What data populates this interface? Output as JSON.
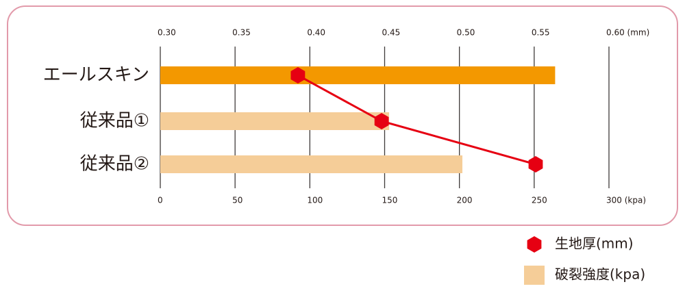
{
  "chart_data": {
    "type": "bar",
    "categories": [
      "エールスキン",
      "従来品①",
      "従来品②"
    ],
    "series": [
      {
        "name": "破裂強度(kpa)",
        "type": "bar",
        "color": "#f5cd98",
        "colors": [
          "#f39800",
          "#f5cd98",
          "#f5cd98"
        ],
        "values": [
          264,
          153,
          202
        ]
      },
      {
        "name": "生地厚(mm)",
        "type": "line",
        "axis": "x2",
        "color": "#e60012",
        "values": [
          0.392,
          0.448,
          0.551
        ]
      }
    ],
    "xlim": [
      0,
      300
    ],
    "xticks": [
      0,
      50,
      100,
      150,
      200,
      250,
      {
        "value": 300,
        "label": "300 (kpa)"
      }
    ],
    "x2lim": [
      0.3,
      0.6
    ],
    "x2ticks": [
      {
        "value": 0.3,
        "label": "0.30"
      },
      0.35,
      {
        "value": 0.4,
        "label": "0.40"
      },
      0.45,
      {
        "value": 0.5,
        "label": "0.50"
      },
      0.55,
      {
        "value": 0.6,
        "label": "0.60 (mm)"
      }
    ],
    "grid": true
  }
}
